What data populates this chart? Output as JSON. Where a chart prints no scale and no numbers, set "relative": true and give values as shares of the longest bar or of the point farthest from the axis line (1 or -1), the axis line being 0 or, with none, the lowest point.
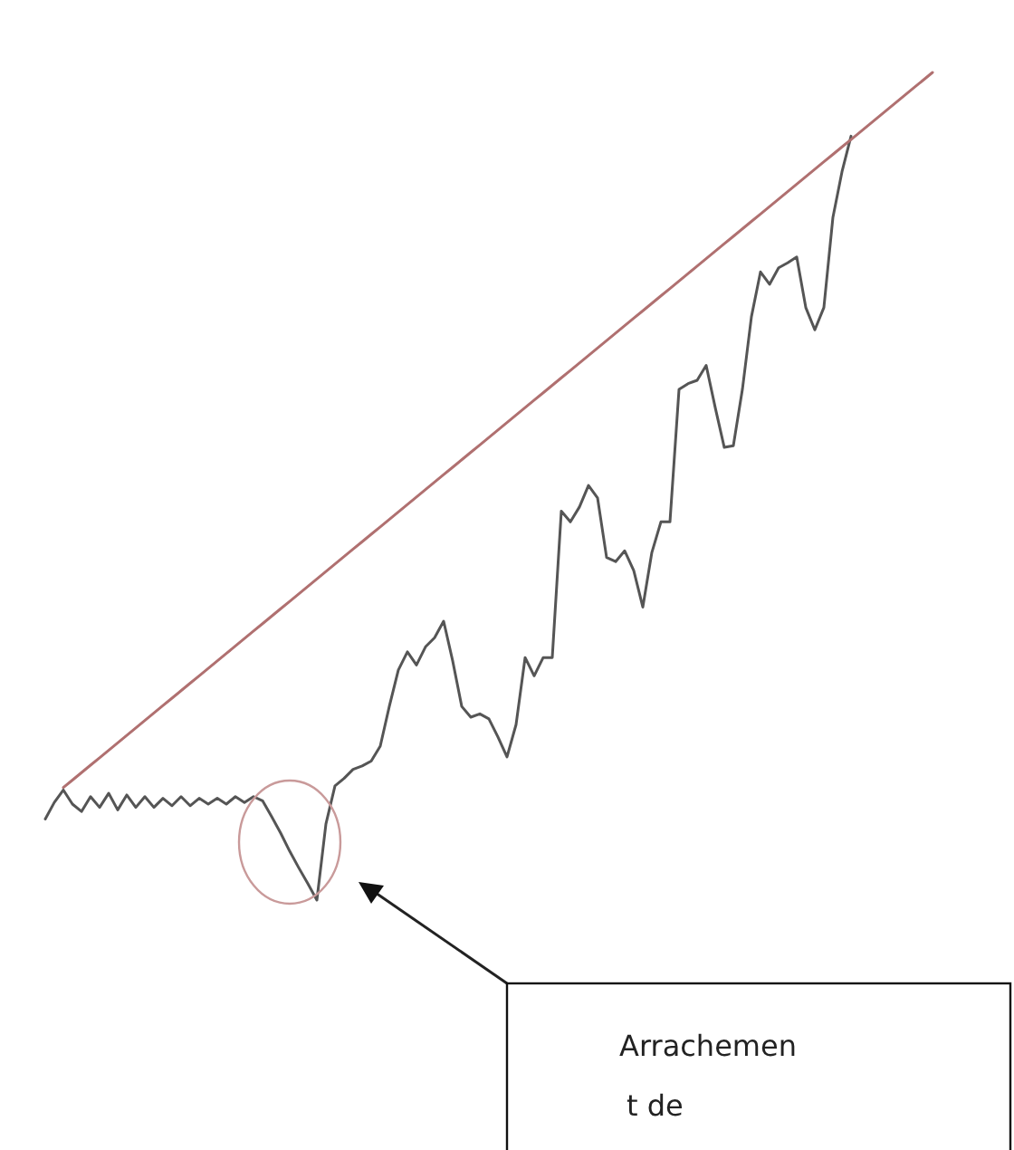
{
  "chart_data": {
    "type": "line",
    "relative": true,
    "categories": [
      null,
      null,
      null,
      null,
      null,
      null,
      null,
      null,
      null,
      null,
      null,
      null,
      null,
      null,
      null,
      null,
      null,
      null,
      null,
      null,
      null,
      null,
      null,
      null,
      null,
      null,
      null,
      null,
      null,
      null,
      null,
      null,
      null,
      null,
      null,
      null,
      null,
      null,
      null,
      null,
      null,
      null,
      null,
      null,
      null,
      null,
      null,
      null,
      null,
      null,
      null,
      null,
      null,
      null,
      null,
      null,
      null,
      null,
      null,
      null,
      null,
      null,
      null,
      null,
      null,
      null,
      null,
      null,
      null,
      null,
      null,
      null,
      null,
      null,
      null,
      null,
      null,
      null,
      null,
      null,
      null,
      null,
      null,
      null,
      null,
      null,
      null,
      null,
      null,
      null,
      null,
      null,
      null,
      null,
      null,
      null,
      null,
      null,
      null
    ],
    "series": [
      {
        "color": "#555555",
        "values": [
          0.098,
          0.118,
          0.133,
          0.116,
          0.107,
          0.125,
          0.112,
          0.129,
          0.109,
          0.127,
          0.112,
          0.125,
          0.112,
          0.123,
          0.114,
          0.125,
          0.114,
          0.123,
          0.116,
          0.123,
          0.116,
          0.125,
          0.118,
          0.125,
          0.12,
          0.101,
          0.081,
          0.059,
          0.039,
          0.02,
          0,
          0.092,
          0.138,
          0.147,
          0.158,
          0.162,
          0.168,
          0.186,
          0.234,
          0.278,
          0.3,
          0.284,
          0.306,
          0.317,
          0.337,
          0.289,
          0.234,
          0.221,
          0.225,
          0.219,
          0.197,
          0.173,
          0.212,
          0.293,
          0.271,
          0.293,
          0.293,
          0.47,
          0.457,
          0.475,
          0.501,
          0.486,
          0.414,
          0.409,
          0.422,
          0.398,
          0.354,
          0.42,
          0.457,
          0.457,
          0.617,
          0.624,
          0.628,
          0.646,
          0.595,
          0.547,
          0.549,
          0.617,
          0.705,
          0.759,
          0.744,
          0.764,
          0.77,
          0.777,
          0.716,
          0.689,
          0.716,
          0.825,
          0.88,
          0.923,
          null,
          null,
          null,
          null,
          null,
          null,
          null,
          null,
          null
        ]
      },
      {
        "color": "#b07070",
        "values": [
          null,
          null,
          0.136,
          0.145,
          0.154,
          0.163,
          0.172,
          0.181,
          0.19,
          0.199,
          0.208,
          0.217,
          0.226,
          0.235,
          0.244,
          0.253,
          0.262,
          0.271,
          0.28,
          0.289,
          0.298,
          0.307,
          0.316,
          0.325,
          0.334,
          0.343,
          0.352,
          0.361,
          0.37,
          0.379,
          0.388,
          0.397,
          0.406,
          0.415,
          0.424,
          0.433,
          0.442,
          0.451,
          0.46,
          0.469,
          0.478,
          0.487,
          0.496,
          0.505,
          0.514,
          0.523,
          0.532,
          0.541,
          0.55,
          0.559,
          0.568,
          0.577,
          0.586,
          0.595,
          0.604,
          0.613,
          0.622,
          0.631,
          0.64,
          0.649,
          0.658,
          0.667,
          0.676,
          0.685,
          0.694,
          0.703,
          0.712,
          0.721,
          0.73,
          0.739,
          0.748,
          0.757,
          0.766,
          0.775,
          0.784,
          0.793,
          0.802,
          0.811,
          0.82,
          0.829,
          0.838,
          0.847,
          0.856,
          0.865,
          0.874,
          0.883,
          0.892,
          0.901,
          0.91,
          0.919,
          0.928,
          0.937,
          0.946,
          0.955,
          0.964,
          0.973,
          0.982,
          0.991,
          1.0
        ]
      }
    ],
    "annotations": [
      "Arrachemen\nt de"
    ]
  }
}
